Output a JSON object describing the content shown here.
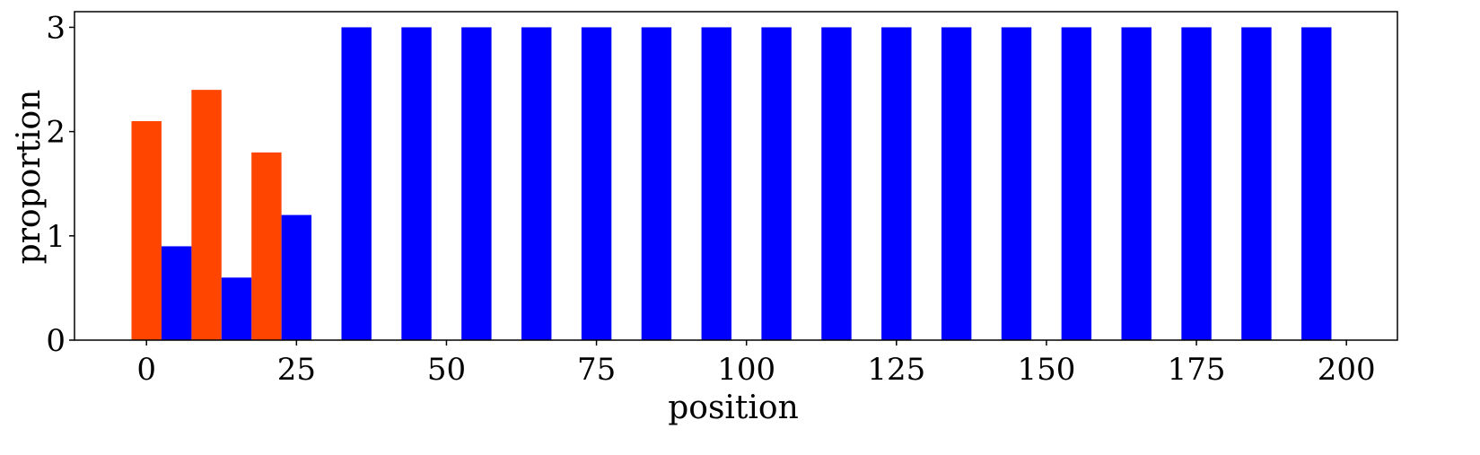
{
  "chart_data": {
    "type": "bar",
    "title": "",
    "xlabel": "position",
    "ylabel": "proportion",
    "xlim": [
      -12,
      208.5
    ],
    "ylim": [
      0,
      3.15
    ],
    "xticks": [
      0,
      25,
      50,
      75,
      100,
      125,
      150,
      175,
      200
    ],
    "yticks": [
      0,
      1,
      2,
      3
    ],
    "bar_width": 5,
    "grid": false,
    "legend": "none",
    "series": [
      {
        "color": "#ff4500",
        "bars": [
          {
            "x": 0,
            "value": 2.1
          },
          {
            "x": 10,
            "value": 2.4
          },
          {
            "x": 20,
            "value": 1.8
          }
        ]
      },
      {
        "color": "#0000ff",
        "bars": [
          {
            "x": 5,
            "value": 0.9
          },
          {
            "x": 15,
            "value": 0.6
          },
          {
            "x": 25,
            "value": 1.2
          },
          {
            "x": 35,
            "value": 3
          },
          {
            "x": 45,
            "value": 3
          },
          {
            "x": 55,
            "value": 3
          },
          {
            "x": 65,
            "value": 3
          },
          {
            "x": 75,
            "value": 3
          },
          {
            "x": 85,
            "value": 3
          },
          {
            "x": 95,
            "value": 3
          },
          {
            "x": 105,
            "value": 3
          },
          {
            "x": 115,
            "value": 3
          },
          {
            "x": 125,
            "value": 3
          },
          {
            "x": 135,
            "value": 3
          },
          {
            "x": 145,
            "value": 3
          },
          {
            "x": 155,
            "value": 3
          },
          {
            "x": 165,
            "value": 3
          },
          {
            "x": 175,
            "value": 3
          },
          {
            "x": 185,
            "value": 3
          },
          {
            "x": 195,
            "value": 3
          }
        ]
      }
    ]
  }
}
